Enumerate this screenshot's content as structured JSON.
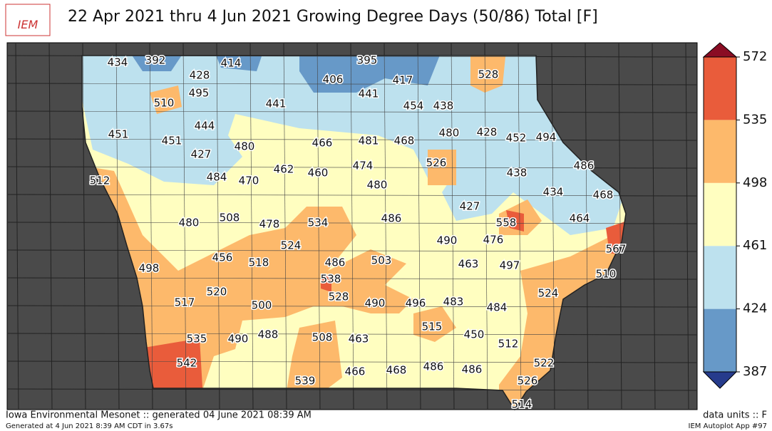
{
  "header": {
    "logo": "IEM",
    "title": "22 Apr 2021 thru 4 Jun 2021 Growing Degree Days (50/86) Total [F]"
  },
  "stations": [
    434,
    392,
    414,
    395,
    428,
    406,
    417,
    528,
    495,
    441,
    510,
    441,
    454,
    438,
    444,
    480,
    428,
    452,
    494,
    451,
    451,
    466,
    481,
    468,
    480,
    427,
    526,
    486,
    462,
    460,
    474,
    438,
    512,
    484,
    470,
    480,
    434,
    468,
    427,
    464,
    486,
    508,
    480,
    478,
    534,
    558,
    490,
    476,
    567,
    524,
    456,
    518,
    486,
    503,
    463,
    497,
    498,
    538,
    510,
    520,
    528,
    524,
    517,
    500,
    490,
    496,
    483,
    484,
    515,
    450,
    535,
    490,
    488,
    508,
    463,
    512,
    542,
    522,
    539,
    466,
    468,
    486,
    486,
    526,
    514
  ],
  "colorbar": {
    "ticks": [
      387,
      424,
      461,
      498,
      535,
      572
    ],
    "colors": [
      "#6799c8",
      "#bde1ee",
      "#fffec0",
      "#fdb96b",
      "#e95c3b"
    ]
  },
  "footer": {
    "left": "Iowa Environmental Mesonet :: generated 04 June 2021 08:39 AM",
    "generated": "Generated at 4 Jun 2021 8:39 AM CDT in 3.67s",
    "units": "data units :: F",
    "app": "IEM Autoplot App #97"
  }
}
